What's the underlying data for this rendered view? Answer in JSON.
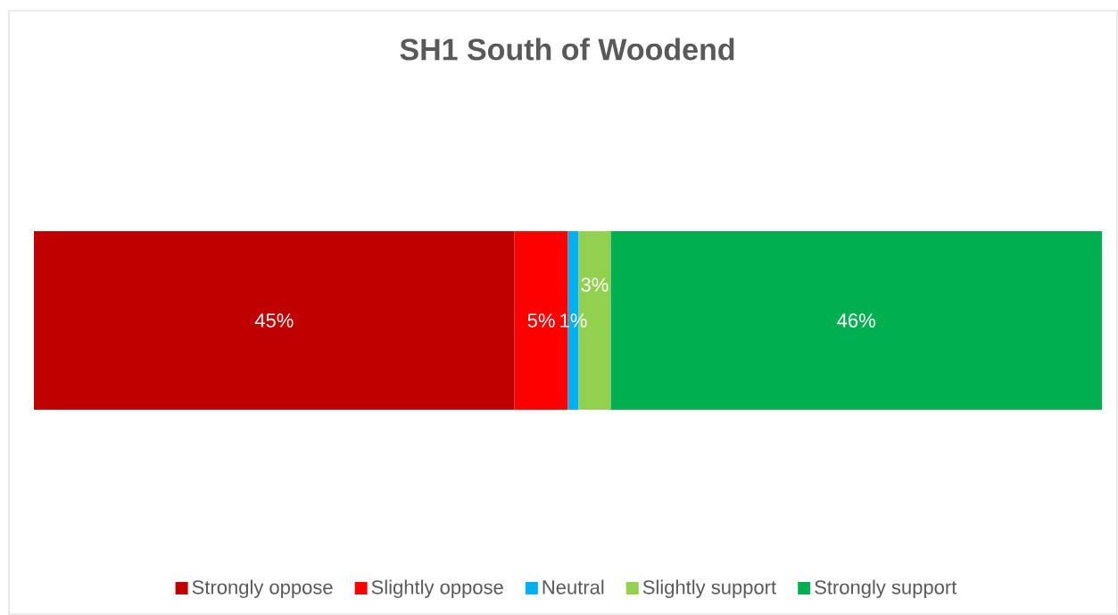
{
  "chart_data": {
    "type": "bar",
    "orientation": "horizontal",
    "stacked": true,
    "title": "SH1 South of Woodend",
    "categories": [
      null
    ],
    "series": [
      {
        "name": "Strongly oppose",
        "color": "#c00000",
        "values": [
          45
        ],
        "value_labels": [
          "45%"
        ]
      },
      {
        "name": "Slightly oppose",
        "color": "#ff0000",
        "values": [
          5
        ],
        "value_labels": [
          "5%"
        ]
      },
      {
        "name": "Neutral",
        "color": "#00b0f0",
        "values": [
          1
        ],
        "value_labels": [
          "1%"
        ]
      },
      {
        "name": "Slightly support",
        "color": "#92d050",
        "values": [
          3
        ],
        "value_labels": [
          "3%"
        ]
      },
      {
        "name": "Strongly support",
        "color": "#00b050",
        "values": [
          46
        ],
        "value_labels": [
          "46%"
        ]
      }
    ],
    "legend": "bottom"
  }
}
